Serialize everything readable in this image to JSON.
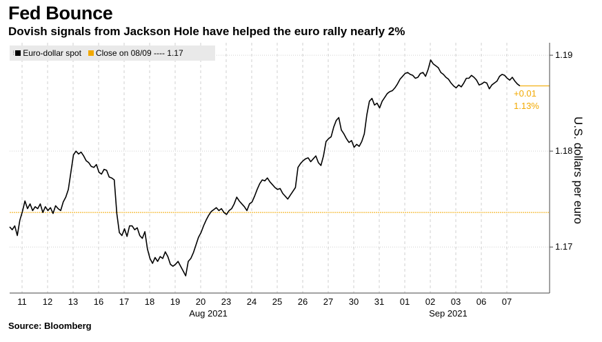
{
  "title": "Fed Bounce",
  "subtitle": "Dovish signals from Jackson Hole have helped the euro rally nearly 2%",
  "source": "Source: Bloomberg",
  "colors": {
    "series": "#000000",
    "reference": "#f2a900",
    "grid": "#cfcfcf",
    "axis": "#444444"
  },
  "legend": {
    "handle": "⁝",
    "spot_label": "Euro-dollar spot",
    "close_label": "Close on 08/09 ---- 1.17"
  },
  "annotation": {
    "change": "+0.01",
    "percent": "1.13%"
  },
  "chart_data": {
    "type": "line",
    "ylabel": "U.S. dollars per euro",
    "ylim": [
      1.1652,
      1.1913
    ],
    "yticks": [
      1.17,
      1.18,
      1.19
    ],
    "ytick_labels": [
      "1.17",
      "1.18",
      "1.19"
    ],
    "x_tick_labels": [
      "11",
      "12",
      "13",
      "16",
      "17",
      "18",
      "19",
      "20",
      "23",
      "24",
      "25",
      "26",
      "27",
      "30",
      "31",
      "01",
      "02",
      "03",
      "06",
      "07"
    ],
    "month_labels": [
      {
        "label": "Aug 2021",
        "day_index": 7.3
      },
      {
        "label": "Sep 2021",
        "day_index": 16.7
      }
    ],
    "reference_line": {
      "value": 1.1736,
      "label": "Close on 08/09"
    },
    "series": [
      {
        "name": "Euro-dollar spot",
        "x": [
          0,
          0.1,
          0.2,
          0.3,
          0.4,
          0.5,
          0.6,
          0.7,
          0.8,
          0.9,
          1.0,
          1.1,
          1.2,
          1.3,
          1.4,
          1.5,
          1.6,
          1.7,
          1.8,
          1.9,
          2.0,
          2.1,
          2.2,
          2.3,
          2.4,
          2.5,
          2.6,
          2.7,
          2.8,
          2.9,
          3.0,
          3.1,
          3.2,
          3.3,
          3.4,
          3.5,
          3.6,
          3.7,
          3.8,
          3.9,
          4.0,
          4.1,
          4.2,
          4.3,
          4.4,
          4.5,
          4.6,
          4.7,
          4.8,
          4.9,
          5.0,
          5.1,
          5.2,
          5.3,
          5.4,
          5.5,
          5.6,
          5.7,
          5.8,
          5.9,
          6.0,
          6.1,
          6.2,
          6.3,
          6.4,
          6.5,
          6.6,
          6.7,
          6.8,
          6.9,
          7.0,
          7.1,
          7.2,
          7.3,
          7.4,
          7.5,
          7.6,
          7.7,
          7.8,
          7.9,
          8.0,
          8.1,
          8.2,
          8.3,
          8.4,
          8.5,
          8.6,
          8.7,
          8.8,
          8.9,
          9.0,
          9.1,
          9.2,
          9.3,
          9.4,
          9.5,
          9.6,
          9.7,
          9.8,
          9.9,
          10.0,
          10.1,
          10.2,
          10.3,
          10.4,
          10.5,
          10.6,
          10.7,
          10.8,
          10.9,
          11.0,
          11.1,
          11.2,
          11.3,
          11.4,
          11.5,
          11.6,
          11.7,
          11.8,
          11.9,
          12.0,
          12.1,
          12.2,
          12.3,
          12.4,
          12.5,
          12.6,
          12.7,
          12.8,
          12.9,
          13.0,
          13.1,
          13.2,
          13.3,
          13.4,
          13.5,
          13.6,
          13.7,
          13.8,
          13.9,
          14.0,
          14.1,
          14.2,
          14.3,
          14.4,
          14.5,
          14.6,
          14.7,
          14.8,
          14.9,
          15.0,
          15.1,
          15.2,
          15.3,
          15.4,
          15.5,
          15.6,
          15.7,
          15.8,
          15.9,
          16.0,
          16.1,
          16.2,
          16.3,
          16.4,
          16.5,
          16.6,
          16.7,
          16.8,
          16.9,
          17.0,
          17.1,
          17.2,
          17.3,
          17.4,
          17.5,
          17.6,
          17.7,
          17.8,
          17.9,
          18.0,
          18.1,
          18.2,
          18.3,
          18.4,
          18.5,
          18.6,
          18.7,
          18.8,
          18.9,
          19.0,
          19.1,
          19.2,
          19.3,
          19.4,
          19.5,
          19.6,
          19.7,
          19.8,
          19.9,
          20.0
        ],
        "values": [
          1.1721,
          1.1718,
          1.1722,
          1.1712,
          1.1728,
          1.1737,
          1.1748,
          1.174,
          1.1745,
          1.1738,
          1.1742,
          1.174,
          1.1745,
          1.1736,
          1.1742,
          1.1738,
          1.1741,
          1.1735,
          1.1743,
          1.174,
          1.1738,
          1.1747,
          1.1752,
          1.176,
          1.1778,
          1.1796,
          1.18,
          1.1797,
          1.1799,
          1.1795,
          1.179,
          1.1788,
          1.1784,
          1.1783,
          1.1786,
          1.1778,
          1.1776,
          1.1781,
          1.178,
          1.1773,
          1.1772,
          1.177,
          1.1735,
          1.1715,
          1.1712,
          1.1719,
          1.1711,
          1.1722,
          1.1722,
          1.1718,
          1.172,
          1.1712,
          1.1709,
          1.1716,
          1.1698,
          1.1688,
          1.1683,
          1.1689,
          1.1685,
          1.169,
          1.1688,
          1.1695,
          1.169,
          1.1682,
          1.168,
          1.1682,
          1.1685,
          1.168,
          1.1675,
          1.167,
          1.1685,
          1.1688,
          1.1694,
          1.1702,
          1.171,
          1.1715,
          1.1722,
          1.1728,
          1.1733,
          1.1737,
          1.1739,
          1.1741,
          1.1738,
          1.174,
          1.1736,
          1.1734,
          1.1738,
          1.174,
          1.1745,
          1.1752,
          1.1748,
          1.1745,
          1.1742,
          1.1738,
          1.1745,
          1.1747,
          1.1753,
          1.176,
          1.1766,
          1.177,
          1.1769,
          1.1772,
          1.1768,
          1.1765,
          1.1762,
          1.176,
          1.1761,
          1.1756,
          1.1753,
          1.175,
          1.1754,
          1.1758,
          1.1762,
          1.1783,
          1.1787,
          1.179,
          1.1792,
          1.1793,
          1.1789,
          1.1792,
          1.1795,
          1.1788,
          1.1785,
          1.1795,
          1.181,
          1.1813,
          1.1815,
          1.1825,
          1.1832,
          1.1835,
          1.1822,
          1.1818,
          1.1813,
          1.1809,
          1.1811,
          1.1804,
          1.1807,
          1.1805,
          1.181,
          1.1818,
          1.1838,
          1.1852,
          1.1855,
          1.1848,
          1.185,
          1.1845,
          1.1852,
          1.1856,
          1.186,
          1.1862,
          1.1863,
          1.1866,
          1.187,
          1.1875,
          1.1878,
          1.1881,
          1.1882,
          1.188,
          1.1879,
          1.1876,
          1.1877,
          1.1881,
          1.1882,
          1.1878,
          1.1885,
          1.1895,
          1.1891,
          1.1889,
          1.1887,
          1.1882,
          1.188,
          1.1877,
          1.1875,
          1.1871,
          1.1868,
          1.1866,
          1.1869,
          1.1867,
          1.1871,
          1.1876,
          1.1876,
          1.1879,
          1.1877,
          1.1874,
          1.1869,
          1.187,
          1.1872,
          1.1871,
          1.1865,
          1.1869,
          1.1871,
          1.1873,
          1.1878,
          1.188,
          1.1879,
          1.1876,
          1.1874,
          1.1877,
          1.1873,
          1.187,
          1.1868
        ]
      }
    ]
  }
}
